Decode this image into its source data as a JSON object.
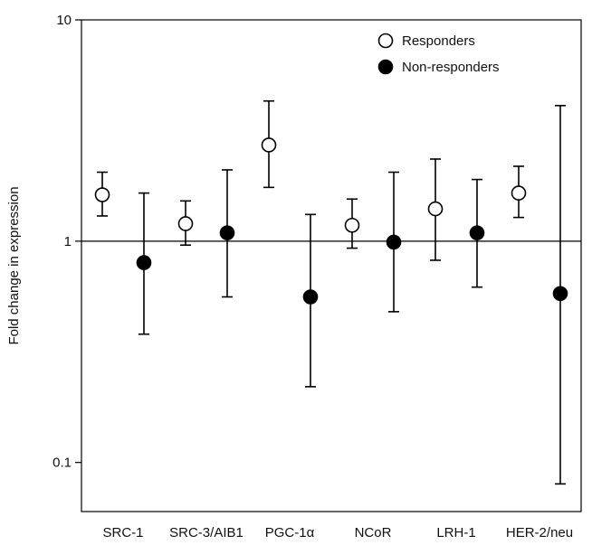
{
  "chart_data": {
    "type": "scatter",
    "title": "",
    "xlabel": "",
    "ylabel": "Fold change in expression",
    "yscale": "log",
    "ylim": [
      0.06,
      10
    ],
    "yticks": [
      0.1,
      1,
      10
    ],
    "ytick_labels": [
      "0.1",
      "1",
      "10"
    ],
    "reference_line": 1,
    "grid": false,
    "legend_position": "top-right",
    "categories": [
      "SRC-1",
      "SRC-3/AIB1",
      "PGC-1α",
      "NCoR",
      "LRH-1",
      "HER-2/neu"
    ],
    "series": [
      {
        "name": "Responders",
        "marker": "open-circle",
        "color": "#000000",
        "values": [
          1.62,
          1.2,
          2.72,
          1.18,
          1.4,
          1.65
        ],
        "lower": [
          1.3,
          0.96,
          1.75,
          0.93,
          0.82,
          1.28
        ],
        "upper": [
          2.05,
          1.52,
          4.3,
          1.55,
          2.35,
          2.18
        ]
      },
      {
        "name": "Non-responders",
        "marker": "filled-circle",
        "color": "#000000",
        "values": [
          0.8,
          1.09,
          0.56,
          0.99,
          1.09,
          0.58
        ],
        "lower": [
          0.38,
          0.56,
          0.22,
          0.48,
          0.62,
          0.08
        ],
        "upper": [
          1.65,
          2.1,
          1.32,
          2.05,
          1.9,
          4.1
        ]
      }
    ]
  }
}
